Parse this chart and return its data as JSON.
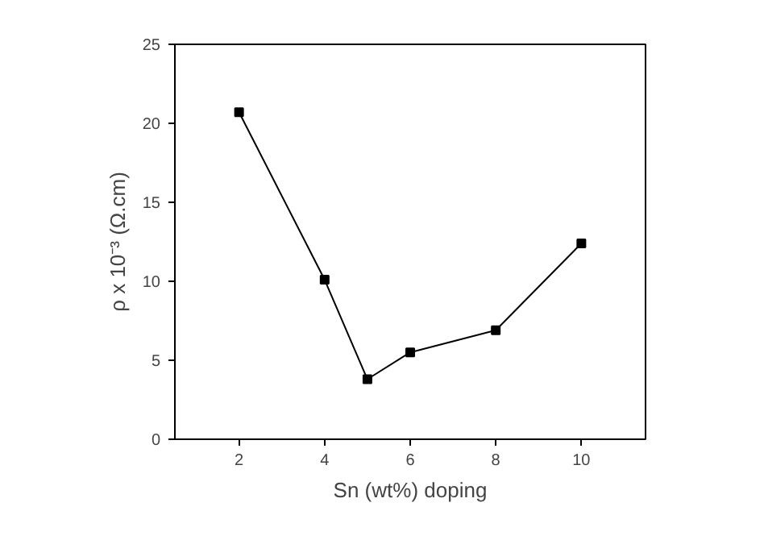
{
  "chart_data": {
    "type": "line",
    "xlabel": "Sn (wt%) doping",
    "ylabel": "ρ x 10⁻³ (Ω.cm)",
    "x": [
      2,
      4,
      5,
      6,
      8,
      10
    ],
    "series": [
      {
        "color": "#000000",
        "values": [
          20.7,
          10.1,
          3.8,
          5.5,
          6.9,
          12.4
        ]
      }
    ],
    "xlim": [
      0.5,
      11.5
    ],
    "xticks": [
      2,
      4,
      6,
      8,
      10
    ],
    "ylim": [
      0,
      25
    ],
    "yticks": [
      0,
      5,
      10,
      15,
      20,
      25
    ],
    "marker": "square",
    "line_style": "solid",
    "grid": false
  }
}
